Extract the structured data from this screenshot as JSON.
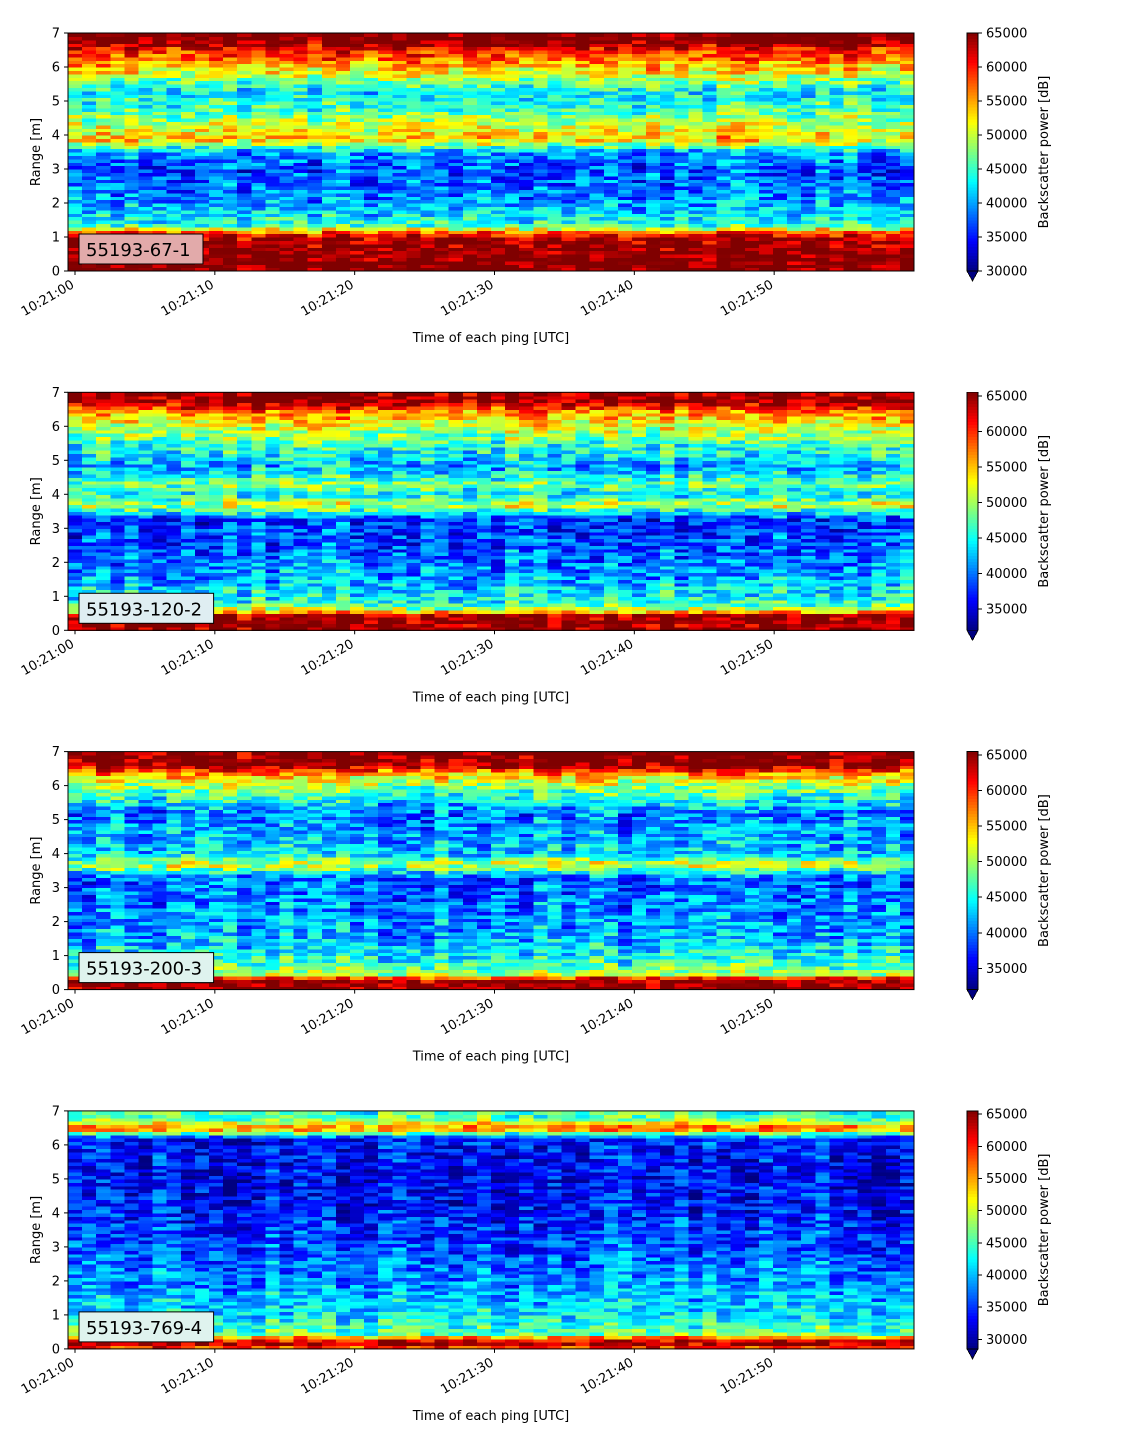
{
  "chart_data": [
    {
      "type": "heatmap",
      "panel_label": "55193-67-1",
      "label_box_color": "#e2aaaa",
      "xlabel": "Time of each ping [UTC]",
      "ylabel": "Range [m]",
      "x_range": [
        "10:21:00",
        "10:21:59"
      ],
      "x_ticks": [
        "10:21:00",
        "10:21:10",
        "10:21:20",
        "10:21:30",
        "10:21:40",
        "10:21:50"
      ],
      "ylim": [
        0,
        7
      ],
      "y_ticks": [
        "0",
        "1",
        "2",
        "3",
        "4",
        "5",
        "6",
        "7"
      ],
      "colorbar": {
        "label": "Backscatter power [dB]",
        "range": [
          30000,
          65000
        ],
        "ticks": [
          "30000",
          "35000",
          "40000",
          "45000",
          "50000",
          "55000",
          "60000",
          "65000"
        ],
        "colormap": "jet",
        "extend_min": true
      },
      "profile": [
        {
          "range_m": 0.0,
          "value": 66000
        },
        {
          "range_m": 0.25,
          "value": 66000
        },
        {
          "range_m": 0.9,
          "value": 64000
        },
        {
          "range_m": 1.1,
          "value": 60000
        },
        {
          "range_m": 1.35,
          "value": 45000
        },
        {
          "range_m": 1.7,
          "value": 42000
        },
        {
          "range_m": 2.2,
          "value": 39000
        },
        {
          "range_m": 3.0,
          "value": 37000
        },
        {
          "range_m": 3.5,
          "value": 40000
        },
        {
          "range_m": 3.9,
          "value": 54000
        },
        {
          "range_m": 4.3,
          "value": 50000
        },
        {
          "range_m": 4.8,
          "value": 45000
        },
        {
          "range_m": 5.3,
          "value": 43000
        },
        {
          "range_m": 6.0,
          "value": 54000
        },
        {
          "range_m": 6.5,
          "value": 60000
        },
        {
          "range_m": 6.8,
          "value": 66000
        },
        {
          "range_m": 7.0,
          "value": 66000
        }
      ]
    },
    {
      "type": "heatmap",
      "panel_label": "55193-120-2",
      "label_box_color": "#dfeef2",
      "xlabel": "Time of each ping [UTC]",
      "ylabel": "Range [m]",
      "x_range": [
        "10:21:00",
        "10:21:59"
      ],
      "x_ticks": [
        "10:21:00",
        "10:21:10",
        "10:21:20",
        "10:21:30",
        "10:21:40",
        "10:21:50"
      ],
      "ylim": [
        0,
        7
      ],
      "y_ticks": [
        "0",
        "1",
        "2",
        "3",
        "4",
        "5",
        "6",
        "7"
      ],
      "colorbar": {
        "label": "Backscatter power [dB]",
        "range": [
          32000,
          65500
        ],
        "ticks": [
          "35000",
          "40000",
          "45000",
          "50000",
          "55000",
          "60000",
          "65000"
        ],
        "colormap": "jet",
        "extend_min": true
      },
      "profile": [
        {
          "range_m": 0.0,
          "value": 65500
        },
        {
          "range_m": 0.45,
          "value": 65000
        },
        {
          "range_m": 0.6,
          "value": 52000
        },
        {
          "range_m": 0.8,
          "value": 46000
        },
        {
          "range_m": 1.5,
          "value": 42000
        },
        {
          "range_m": 2.5,
          "value": 39000
        },
        {
          "range_m": 3.3,
          "value": 38000
        },
        {
          "range_m": 3.7,
          "value": 52000
        },
        {
          "range_m": 4.0,
          "value": 44000
        },
        {
          "range_m": 4.3,
          "value": 49000
        },
        {
          "range_m": 4.8,
          "value": 42000
        },
        {
          "range_m": 5.5,
          "value": 47000
        },
        {
          "range_m": 6.0,
          "value": 52000
        },
        {
          "range_m": 6.4,
          "value": 56000
        },
        {
          "range_m": 6.7,
          "value": 65000
        },
        {
          "range_m": 7.0,
          "value": 65500
        }
      ]
    },
    {
      "type": "heatmap",
      "panel_label": "55193-200-3",
      "label_box_color": "#dff3ee",
      "xlabel": "Time of each ping [UTC]",
      "ylabel": "Range [m]",
      "x_range": [
        "10:21:00",
        "10:21:59"
      ],
      "x_ticks": [
        "10:21:00",
        "10:21:10",
        "10:21:20",
        "10:21:30",
        "10:21:40",
        "10:21:50"
      ],
      "ylim": [
        0,
        7
      ],
      "y_ticks": [
        "0",
        "1",
        "2",
        "3",
        "4",
        "5",
        "6",
        "7"
      ],
      "colorbar": {
        "label": "Backscatter power [dB]",
        "range": [
          32000,
          65500
        ],
        "ticks": [
          "35000",
          "40000",
          "45000",
          "50000",
          "55000",
          "60000",
          "65000"
        ],
        "colormap": "jet",
        "extend_min": true
      },
      "profile": [
        {
          "range_m": 0.0,
          "value": 65500
        },
        {
          "range_m": 0.3,
          "value": 64000
        },
        {
          "range_m": 0.45,
          "value": 50000
        },
        {
          "range_m": 0.8,
          "value": 46000
        },
        {
          "range_m": 1.5,
          "value": 42000
        },
        {
          "range_m": 2.5,
          "value": 40000
        },
        {
          "range_m": 3.3,
          "value": 39000
        },
        {
          "range_m": 3.7,
          "value": 52000
        },
        {
          "range_m": 4.0,
          "value": 43000
        },
        {
          "range_m": 4.5,
          "value": 42000
        },
        {
          "range_m": 5.2,
          "value": 40000
        },
        {
          "range_m": 5.8,
          "value": 47000
        },
        {
          "range_m": 6.3,
          "value": 54000
        },
        {
          "range_m": 6.6,
          "value": 65000
        },
        {
          "range_m": 7.0,
          "value": 65500
        }
      ]
    },
    {
      "type": "heatmap",
      "panel_label": "55193-769-4",
      "label_box_color": "#dff3ee",
      "xlabel": "Time of each ping [UTC]",
      "ylabel": "Range [m]",
      "x_range": [
        "10:21:00",
        "10:21:59"
      ],
      "x_ticks": [
        "10:21:00",
        "10:21:10",
        "10:21:20",
        "10:21:30",
        "10:21:40",
        "10:21:50"
      ],
      "ylim": [
        0,
        7
      ],
      "y_ticks": [
        "0",
        "1",
        "2",
        "3",
        "4",
        "5",
        "6",
        "7"
      ],
      "colorbar": {
        "label": "Backscatter power [dB]",
        "range": [
          28500,
          65500
        ],
        "ticks": [
          "30000",
          "35000",
          "40000",
          "45000",
          "50000",
          "55000",
          "60000",
          "65000"
        ],
        "colormap": "jet",
        "extend_min": true
      },
      "profile": [
        {
          "range_m": 0.0,
          "value": 55000
        },
        {
          "range_m": 0.12,
          "value": 65000
        },
        {
          "range_m": 0.3,
          "value": 60000
        },
        {
          "range_m": 0.45,
          "value": 46000
        },
        {
          "range_m": 1.0,
          "value": 42000
        },
        {
          "range_m": 2.0,
          "value": 38000
        },
        {
          "range_m": 3.0,
          "value": 36000
        },
        {
          "range_m": 4.0,
          "value": 34000
        },
        {
          "range_m": 5.0,
          "value": 33000
        },
        {
          "range_m": 6.2,
          "value": 34000
        },
        {
          "range_m": 6.5,
          "value": 58000
        },
        {
          "range_m": 6.75,
          "value": 47000
        },
        {
          "range_m": 7.0,
          "value": 44000
        }
      ]
    }
  ]
}
